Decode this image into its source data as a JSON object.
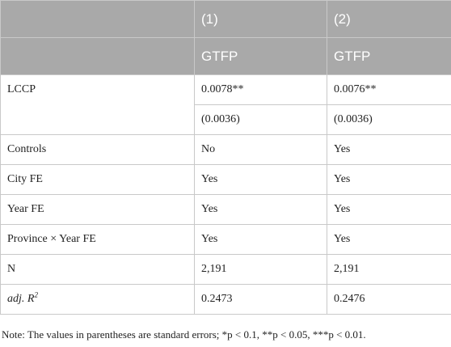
{
  "header": {
    "row1": [
      "",
      "(1)",
      "(2)"
    ],
    "row2": [
      "",
      "GTFP",
      "GTFP"
    ]
  },
  "rows": [
    {
      "label": "LCCP",
      "col1": "0.0078**",
      "col2": "0.0076**"
    },
    {
      "label": "",
      "col1": "(0.0036)",
      "col2": "(0.0036)"
    },
    {
      "label": "Controls",
      "col1": "No",
      "col2": "Yes"
    },
    {
      "label": "City FE",
      "col1": "Yes",
      "col2": "Yes"
    },
    {
      "label": "Year FE",
      "col1": "Yes",
      "col2": "Yes"
    },
    {
      "label": "Province × Year FE",
      "col1": "Yes",
      "col2": "Yes"
    },
    {
      "label": "N",
      "col1": "2,191",
      "col2": "2,191"
    },
    {
      "label_main": "adj. R",
      "label_sup": "2",
      "col1": "0.2473",
      "col2": "0.2476"
    }
  ],
  "note": "Note: The values in parentheses are standard errors; *p < 0.1, **p < 0.05, ***p < 0.01.",
  "colors": {
    "header_bg": "#a9a9a9",
    "header_text": "#ffffff",
    "border": "#c9c9c9",
    "text": "#222222"
  }
}
